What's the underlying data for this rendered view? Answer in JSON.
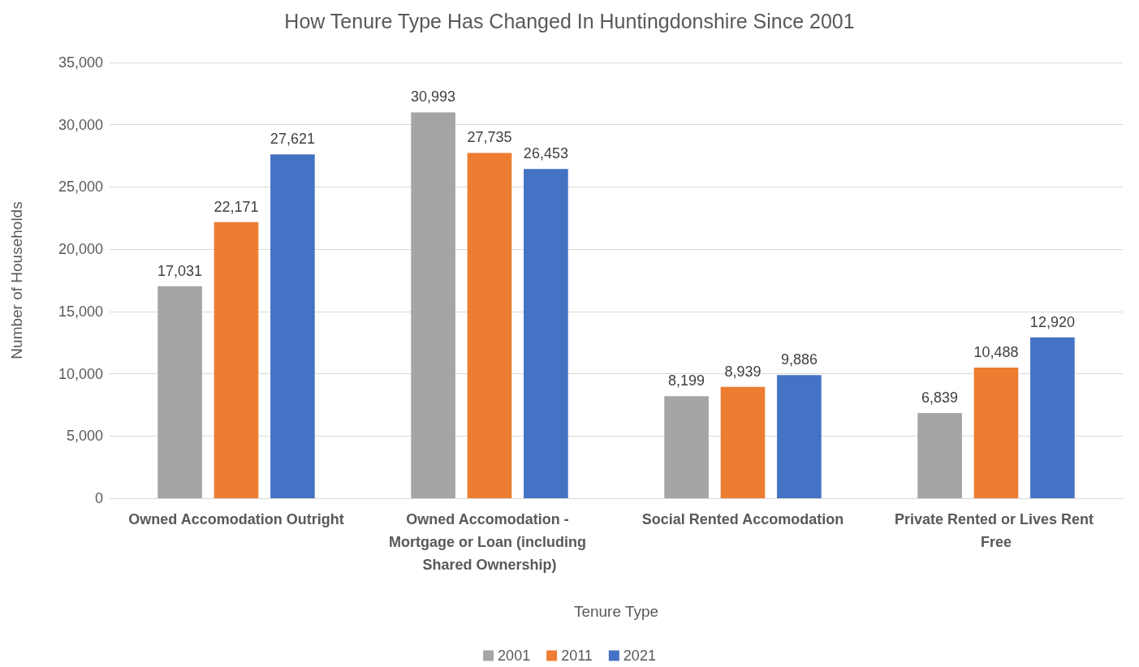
{
  "chart_data": {
    "type": "bar",
    "title": "How Tenure Type Has Changed In Huntingdonshire Since 2001",
    "xlabel": "Tenure Type",
    "ylabel": "Number of Households",
    "categories": [
      "Owned Accomodation Outright",
      "Owned Accomodation - Mortgage or Loan (including Shared Ownership)",
      "Social Rented Accomodation",
      "Private Rented or Lives Rent Free"
    ],
    "series": [
      {
        "name": "2001",
        "color": "#a5a5a5",
        "values": [
          17031,
          30993,
          8199,
          6839
        ],
        "value_labels": [
          "17,031",
          "30,993",
          "8,199",
          "6,839"
        ]
      },
      {
        "name": "2011",
        "color": "#ed7d31",
        "values": [
          22171,
          27735,
          8939,
          10488
        ],
        "value_labels": [
          "22,171",
          "27,735",
          "8,939",
          "10,488"
        ]
      },
      {
        "name": "2021",
        "color": "#4472c4",
        "values": [
          27621,
          26453,
          9886,
          12920
        ],
        "value_labels": [
          "27,621",
          "26,453",
          "9,886",
          "12,920"
        ]
      }
    ],
    "ylim": [
      0,
      35000
    ],
    "yticks": [
      0,
      {
        "value": 5000,
        "label": "5,000"
      },
      {
        "value": 10000,
        "label": "10,000"
      },
      {
        "value": 15000,
        "label": "15,000"
      },
      {
        "value": 20000,
        "label": "20,000"
      },
      {
        "value": 25000,
        "label": "25,000"
      },
      {
        "value": 30000,
        "label": "30,000"
      },
      {
        "value": 35000,
        "label": "35,000"
      }
    ],
    "grid": "y",
    "legend": "bottom"
  }
}
